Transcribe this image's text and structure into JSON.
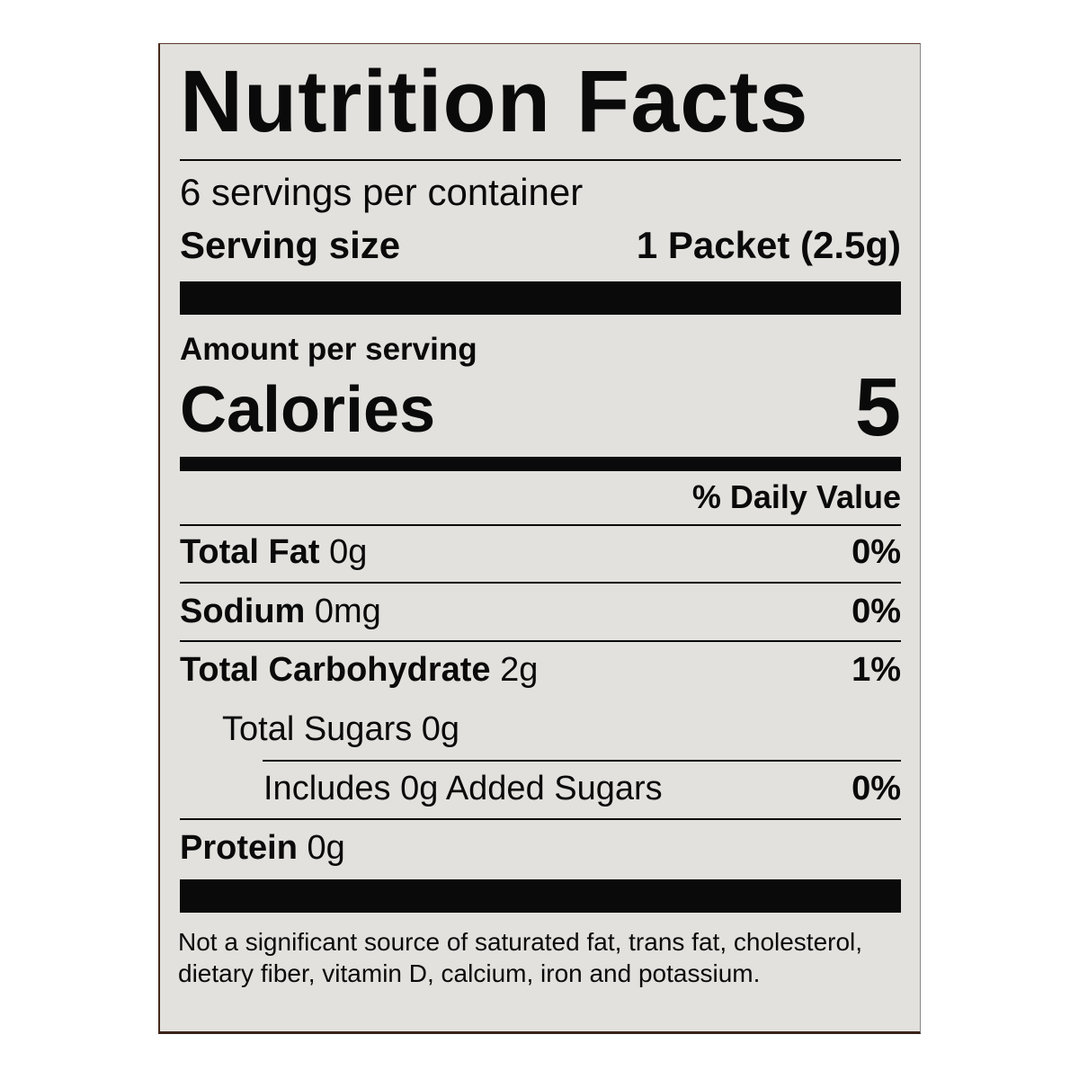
{
  "label": {
    "title": "Nutrition Facts",
    "servings_per_container": "6 servings per container",
    "serving_size_label": "Serving size",
    "serving_size_value": "1 Packet (2.5g)",
    "amount_per_serving": "Amount per serving",
    "calories_label": "Calories",
    "calories_value": "5",
    "daily_value_header": "% Daily Value",
    "nutrients": [
      {
        "name": "Total Fat",
        "amount": "0g",
        "dv": "0%"
      },
      {
        "name": "Sodium",
        "amount": "0mg",
        "dv": "0%"
      },
      {
        "name": "Total Carbohydrate",
        "amount": "2g",
        "dv": "1%"
      },
      {
        "name": "Total Sugars 0g",
        "amount": "",
        "dv": ""
      },
      {
        "name": "Includes 0g Added Sugars",
        "amount": "",
        "dv": "0%"
      },
      {
        "name": "Protein",
        "amount": "0g",
        "dv": ""
      }
    ],
    "footnote": "Not a significant source of saturated fat, trans fat, cholesterol, dietary fiber, vitamin D, calcium, iron and potassium."
  }
}
